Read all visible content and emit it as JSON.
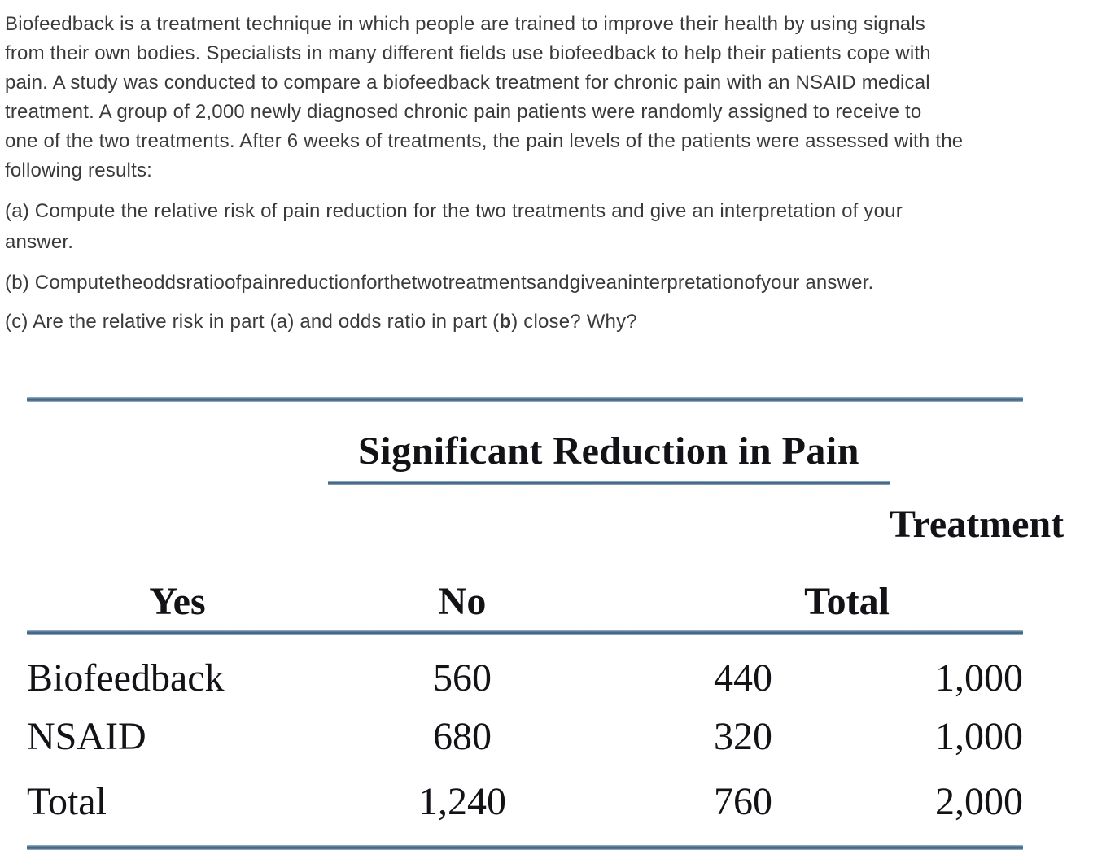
{
  "problem": {
    "paragraph_lines": [
      "Biofeedback is a treatment technique in which people are trained to improve their health by using signals",
      "from their own bodies. Specialists in many different fields use biofeedback to help their patients cope with",
      "pain. A study was conducted to compare a biofeedback treatment for chronic pain with an NSAID medical",
      "treatment. A group of 2,000 newly diagnosed chronic pain patients were randomly assigned to receive to",
      "one of the two treatments. After 6 weeks of treatments, the pain levels of the patients were assessed with the",
      "following results:"
    ],
    "question_a_line1": "(a) Compute the relative risk of pain reduction for the two treatments and give an interpretation of your",
    "question_a_line2": "answer.",
    "question_b": "(b) Computetheoddsratioofpainreductionforthetwotreatmentsandgiveaninterpretationofyour answer.",
    "question_c_pre": "(c) Are the relative risk in part (a) and odds ratio in part (",
    "question_c_bold": "b",
    "question_c_post": ") close? Why?"
  },
  "table": {
    "spanner_header": "Significant Reduction in Pain",
    "columns": [
      "Treatment",
      "Yes",
      "No",
      "Total"
    ],
    "rows": [
      {
        "treatment": "Biofeedback",
        "yes": "560",
        "no": "440",
        "total": "1,000"
      },
      {
        "treatment": "NSAID",
        "yes": "680",
        "no": "320",
        "total": "1,000"
      },
      {
        "treatment": "Total",
        "yes": "1,240",
        "no": "760",
        "total": "2,000"
      }
    ],
    "rule_color": "#45688a",
    "text_color": "#121217"
  },
  "chart_data": {
    "type": "table",
    "title": "Significant Reduction in Pain",
    "row_header": "Treatment",
    "columns": [
      "Yes",
      "No",
      "Total"
    ],
    "rows": [
      {
        "label": "Biofeedback",
        "values": [
          560,
          440,
          1000
        ]
      },
      {
        "label": "NSAID",
        "values": [
          680,
          320,
          1000
        ]
      },
      {
        "label": "Total",
        "values": [
          1240,
          760,
          2000
        ]
      }
    ]
  }
}
